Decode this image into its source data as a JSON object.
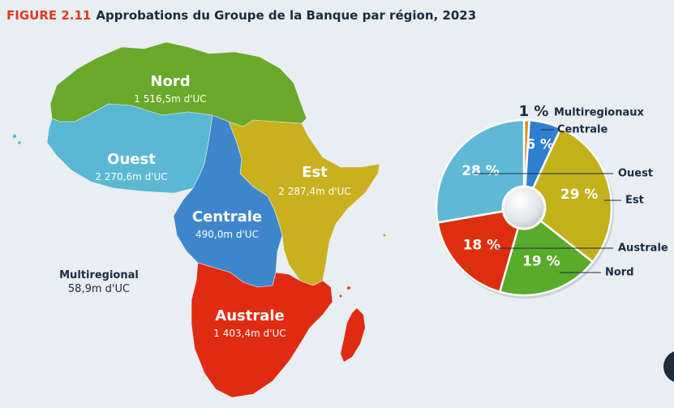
{
  "header": {
    "figure_label": "FIGURE 2.11",
    "title": "Approbations du Groupe de la Banque par région, 2023"
  },
  "map_regions": [
    {
      "name": "Nord",
      "value_label": "1 516,5m d'UC",
      "color": "#6aa82a"
    },
    {
      "name": "Ouest",
      "value_label": "2 270,6m d'UC",
      "color": "#5ab8d3"
    },
    {
      "name": "Est",
      "value_label": "2 287,4m d'UC",
      "color": "#c9b01e"
    },
    {
      "name": "Centrale",
      "value_label": "490,0m d'UC",
      "color": "#3e86cc"
    },
    {
      "name": "Australe",
      "value_label": "1 403,4m d'UC",
      "color": "#df2b12"
    },
    {
      "name": "Multiregional",
      "value_label": "58,9m d'UC",
      "color": "#e88a1c"
    }
  ],
  "chart_data": {
    "type": "pie",
    "title": "Approbations du Groupe de la Banque par région, 2023",
    "slices": [
      {
        "label": "Multiregionaux",
        "value": 1,
        "pct_label": "1 %",
        "color": "#e88a1c"
      },
      {
        "label": "Centrale",
        "value": 6,
        "pct_label": "6 %",
        "color": "#2f7fcf"
      },
      {
        "label": "Est",
        "value": 29,
        "pct_label": "29 %",
        "color": "#c2b11b"
      },
      {
        "label": "Nord",
        "value": 19,
        "pct_label": "19 %",
        "color": "#5aaa2b"
      },
      {
        "label": "Australe",
        "value": 18,
        "pct_label": "18 %",
        "color": "#dd2e10"
      },
      {
        "label": "Ouest",
        "value": 28,
        "pct_label": "28 %",
        "color": "#5fb8d4"
      }
    ]
  }
}
